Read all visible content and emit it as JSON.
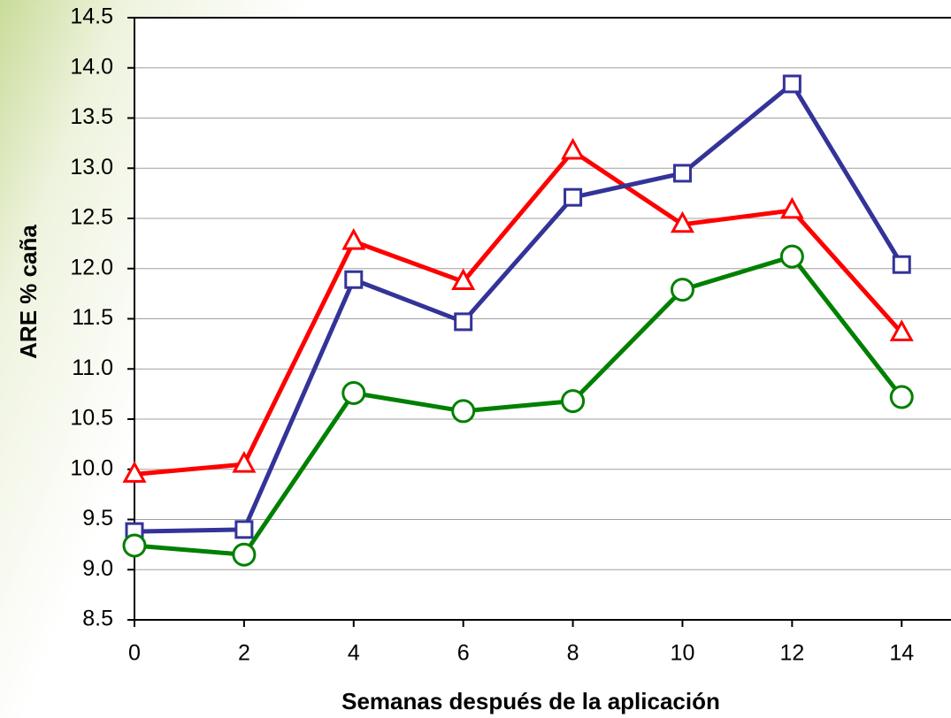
{
  "chart_data": {
    "type": "line",
    "y_label": "ARE % caña",
    "x_label": "Semanas después de la aplicación",
    "x": [
      0,
      2,
      4,
      6,
      8,
      10,
      12,
      14
    ],
    "series": [
      {
        "color": "#ff0000",
        "marker": "triangle",
        "values": [
          9.95,
          10.05,
          12.27,
          11.87,
          13.17,
          12.44,
          12.58,
          11.36
        ]
      },
      {
        "color": "#333399",
        "marker": "square",
        "values": [
          9.38,
          9.4,
          11.89,
          11.47,
          12.71,
          12.95,
          13.84,
          12.04
        ]
      },
      {
        "color": "#008000",
        "marker": "circle",
        "values": [
          9.24,
          9.15,
          10.76,
          10.58,
          10.68,
          11.79,
          12.12,
          10.72
        ]
      }
    ],
    "xlim": [
      0,
      14.9
    ],
    "ylim": [
      8.5,
      14.5
    ],
    "xticks": [
      0,
      2,
      4,
      6,
      8,
      10,
      12,
      14
    ],
    "yticks": [
      8.5,
      {
        "value": 9,
        "label": "9.0"
      },
      9.5,
      {
        "value": 10,
        "label": "10.0"
      },
      10.5,
      {
        "value": 11,
        "label": "11.0"
      },
      11.5,
      {
        "value": 12,
        "label": "12.0"
      },
      12.5,
      {
        "value": 13,
        "label": "13.0"
      },
      13.5,
      {
        "value": 14,
        "label": "14.0"
      },
      14.5
    ],
    "grid": true
  }
}
